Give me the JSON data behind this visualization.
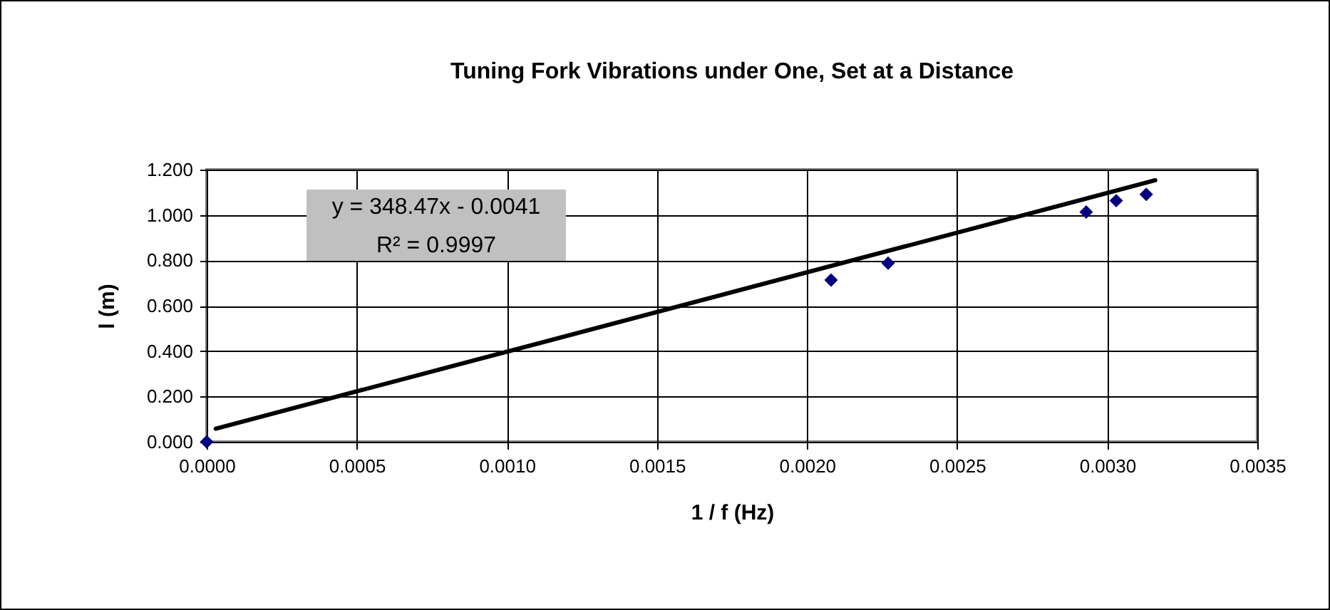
{
  "chart_data": {
    "type": "scatter",
    "title": "Tuning Fork Vibrations under One, Set at a Distance",
    "xlabel": "1 / f (Hz)",
    "ylabel": "l (m)",
    "x": [
      0,
      0.00208,
      0.00227,
      0.00293,
      0.00303,
      0.00313
    ],
    "series": [
      {
        "type": "scatter",
        "color": "#000080",
        "marker": "diamond",
        "values": [
          0,
          0.713,
          0.788,
          1.013,
          1.063,
          1.091
        ]
      },
      {
        "type": "line",
        "color": "#000000",
        "line_style": "solid",
        "x": [
          3e-05,
          0.00316
        ],
        "values": [
          0.058,
          1.153
        ]
      }
    ],
    "annotations": [
      "y = 348.47x - 0.0041",
      "R² = 0.9997"
    ],
    "xlim": [
      0,
      0.0035
    ],
    "xticks": [
      {
        "value": 0,
        "label": "0.0000"
      },
      {
        "value": 0.0005,
        "label": "0.0005"
      },
      {
        "value": 0.001,
        "label": "0.0010"
      },
      {
        "value": 0.0015,
        "label": "0.0015"
      },
      {
        "value": 0.002,
        "label": "0.0020"
      },
      {
        "value": 0.0025,
        "label": "0.0025"
      },
      {
        "value": 0.003,
        "label": "0.0030"
      },
      {
        "value": 0.0035,
        "label": "0.0035"
      }
    ],
    "ylim": [
      0,
      1.2
    ],
    "yticks": [
      {
        "value": 0,
        "label": "0.000"
      },
      {
        "value": 0.2,
        "label": "0.200"
      },
      {
        "value": 0.4,
        "label": "0.400"
      },
      {
        "value": 0.6,
        "label": "0.600"
      },
      {
        "value": 0.8,
        "label": "0.800"
      },
      {
        "value": 1,
        "label": "1.000"
      },
      {
        "value": 1.2,
        "label": "1.200"
      }
    ],
    "grid": true
  }
}
